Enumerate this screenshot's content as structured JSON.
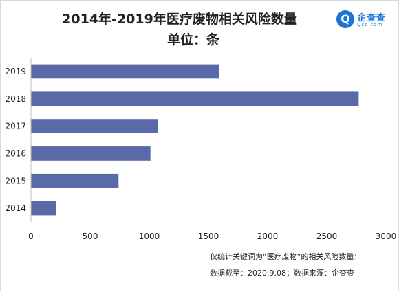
{
  "chart_data": {
    "type": "bar",
    "orientation": "horizontal",
    "title": "2014年-2019年医疗废物相关风险数量",
    "subtitle": "单位：条",
    "categories": [
      "2019",
      "2018",
      "2017",
      "2016",
      "2015",
      "2014"
    ],
    "values": [
      1590,
      2770,
      1070,
      1010,
      740,
      210
    ],
    "xlim": [
      0,
      3000
    ],
    "x_ticks": [
      "0",
      "500",
      "1000",
      "1500",
      "2000",
      "2500",
      "3000"
    ],
    "xlabel": "",
    "ylabel": "",
    "grid": false,
    "legend": "none",
    "bar_color": "#5a6aa8"
  },
  "logo": {
    "icon_name": "magnifier-logo-icon",
    "mark": "Q",
    "name": "企查查",
    "domain": "Qcc.com"
  },
  "notes": {
    "line1": "仅统计关键词为“医疗废物”的相关风险数量；",
    "line2": "数据截至：2020.9.08；数据来源：企查查"
  }
}
